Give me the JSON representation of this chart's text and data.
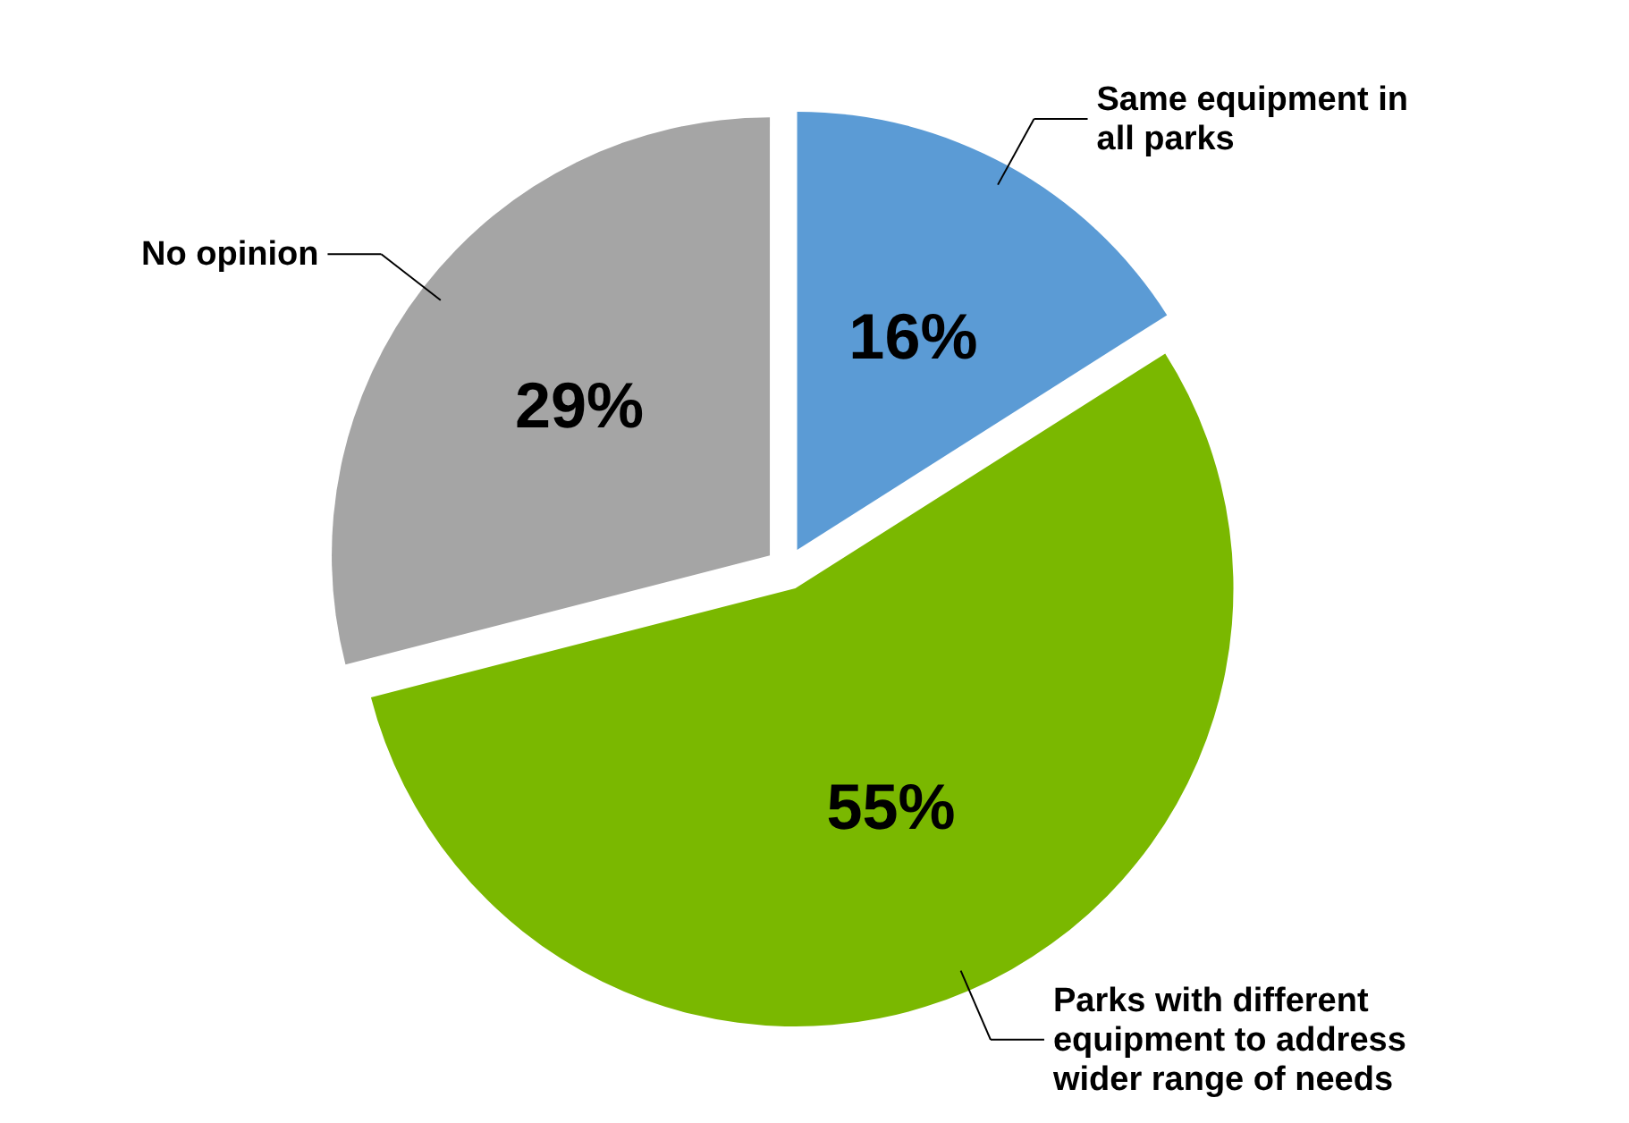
{
  "chart_data": {
    "type": "pie",
    "categories": [
      "Same equipment in all parks",
      "Parks with different equipment to address wider range of needs",
      "No opinion"
    ],
    "values": [
      16,
      55,
      29
    ],
    "colors": [
      "#5b9bd5",
      "#7ab800",
      "#a5a5a5"
    ],
    "value_labels": [
      "16%",
      "55%",
      "29%"
    ]
  }
}
